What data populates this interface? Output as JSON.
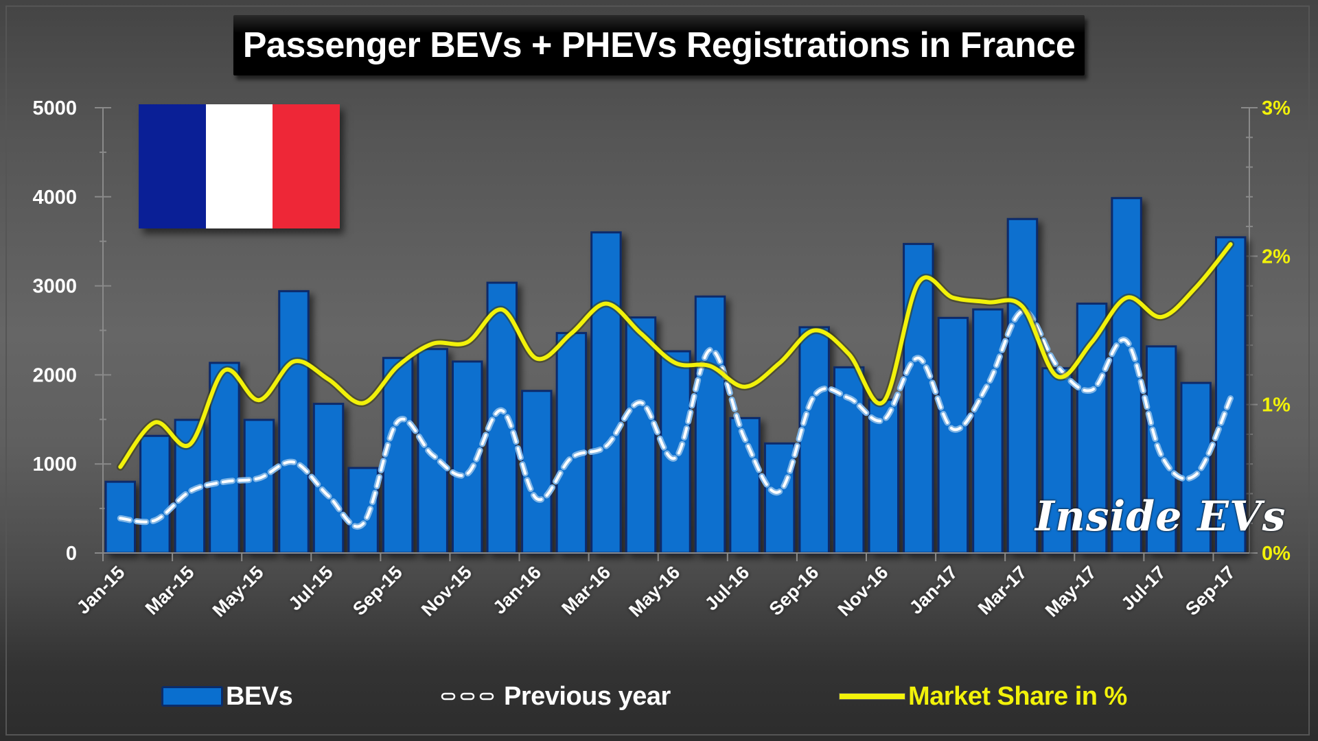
{
  "title": "Passenger BEVs + PHEVs Registrations in France",
  "flag": {
    "name": "France",
    "colors": [
      "#0A1F96",
      "#FFFFFF",
      "#EE2737"
    ]
  },
  "watermark": "Inside EVs",
  "legend": {
    "bevs": "BEVs",
    "previous_year": "Previous year",
    "market_share": "Market Share in %"
  },
  "colors": {
    "bar": "#0A6FCF",
    "bar_border": "#0B2C6A",
    "market_share": "#F2F20A",
    "previous_year": "#FFFFFF"
  },
  "chart_data": {
    "type": "bar",
    "title": "Passenger BEVs + PHEVs Registrations in France",
    "xlabel": "",
    "ylabel": "",
    "ylim": [
      0,
      5000
    ],
    "y2lim": [
      0,
      3
    ],
    "yticks": [
      "0",
      "1000",
      "2000",
      "3000",
      "4000",
      "5000"
    ],
    "y2ticks": [
      "0%",
      "1%",
      "2%",
      "3%"
    ],
    "grid": false,
    "legend_position": "bottom",
    "categories": [
      "Jan-15",
      "Feb-15",
      "Mar-15",
      "Apr-15",
      "May-15",
      "Jun-15",
      "Jul-15",
      "Aug-15",
      "Sep-15",
      "Oct-15",
      "Nov-15",
      "Dec-15",
      "Jan-16",
      "Feb-16",
      "Mar-16",
      "Apr-16",
      "May-16",
      "Jun-16",
      "Jul-16",
      "Aug-16",
      "Sep-16",
      "Oct-16",
      "Nov-16",
      "Dec-16",
      "Jan-17",
      "Feb-17",
      "Mar-17",
      "Apr-17",
      "May-17",
      "Jun-17",
      "Jul-17",
      "Aug-17",
      "Sep-17"
    ],
    "xtick_labels": [
      "Jan-15",
      "Mar-15",
      "May-15",
      "Jul-15",
      "Sep-15",
      "Nov-15",
      "Jan-16",
      "Mar-16",
      "May-16",
      "Jul-16",
      "Sep-16",
      "Nov-16",
      "Jan-17",
      "Mar-17",
      "May-17",
      "Jul-17",
      "Sep-17"
    ],
    "series": [
      {
        "name": "BEVs",
        "type": "bar",
        "axis": "left",
        "values": [
          800,
          1315,
          1495,
          2135,
          1495,
          2940,
          1675,
          955,
          2190,
          2290,
          2150,
          3035,
          1820,
          2470,
          3600,
          2645,
          2265,
          2880,
          1515,
          1230,
          2535,
          2085,
          1720,
          3470,
          2640,
          2735,
          3750,
          2075,
          2800,
          3985,
          2320,
          1910,
          3545
        ]
      },
      {
        "name": "Previous year",
        "type": "line",
        "style": "dashed",
        "axis": "left",
        "values": [
          390,
          367,
          690,
          800,
          840,
          1020,
          640,
          330,
          1480,
          1100,
          890,
          1600,
          610,
          1070,
          1200,
          1690,
          1070,
          2280,
          1280,
          690,
          1765,
          1740,
          1495,
          2190,
          1390,
          1890,
          2715,
          2100,
          1830,
          2380,
          1100,
          880,
          1740
        ]
      },
      {
        "name": "Market Share in %",
        "type": "line",
        "style": "solid",
        "axis": "right",
        "unit": "%",
        "values": [
          0.58,
          0.88,
          0.73,
          1.23,
          1.03,
          1.29,
          1.17,
          1.01,
          1.26,
          1.41,
          1.42,
          1.64,
          1.31,
          1.48,
          1.68,
          1.48,
          1.28,
          1.26,
          1.12,
          1.28,
          1.5,
          1.34,
          1.02,
          1.82,
          1.72,
          1.69,
          1.66,
          1.19,
          1.42,
          1.72,
          1.59,
          1.79,
          2.08
        ]
      }
    ]
  }
}
